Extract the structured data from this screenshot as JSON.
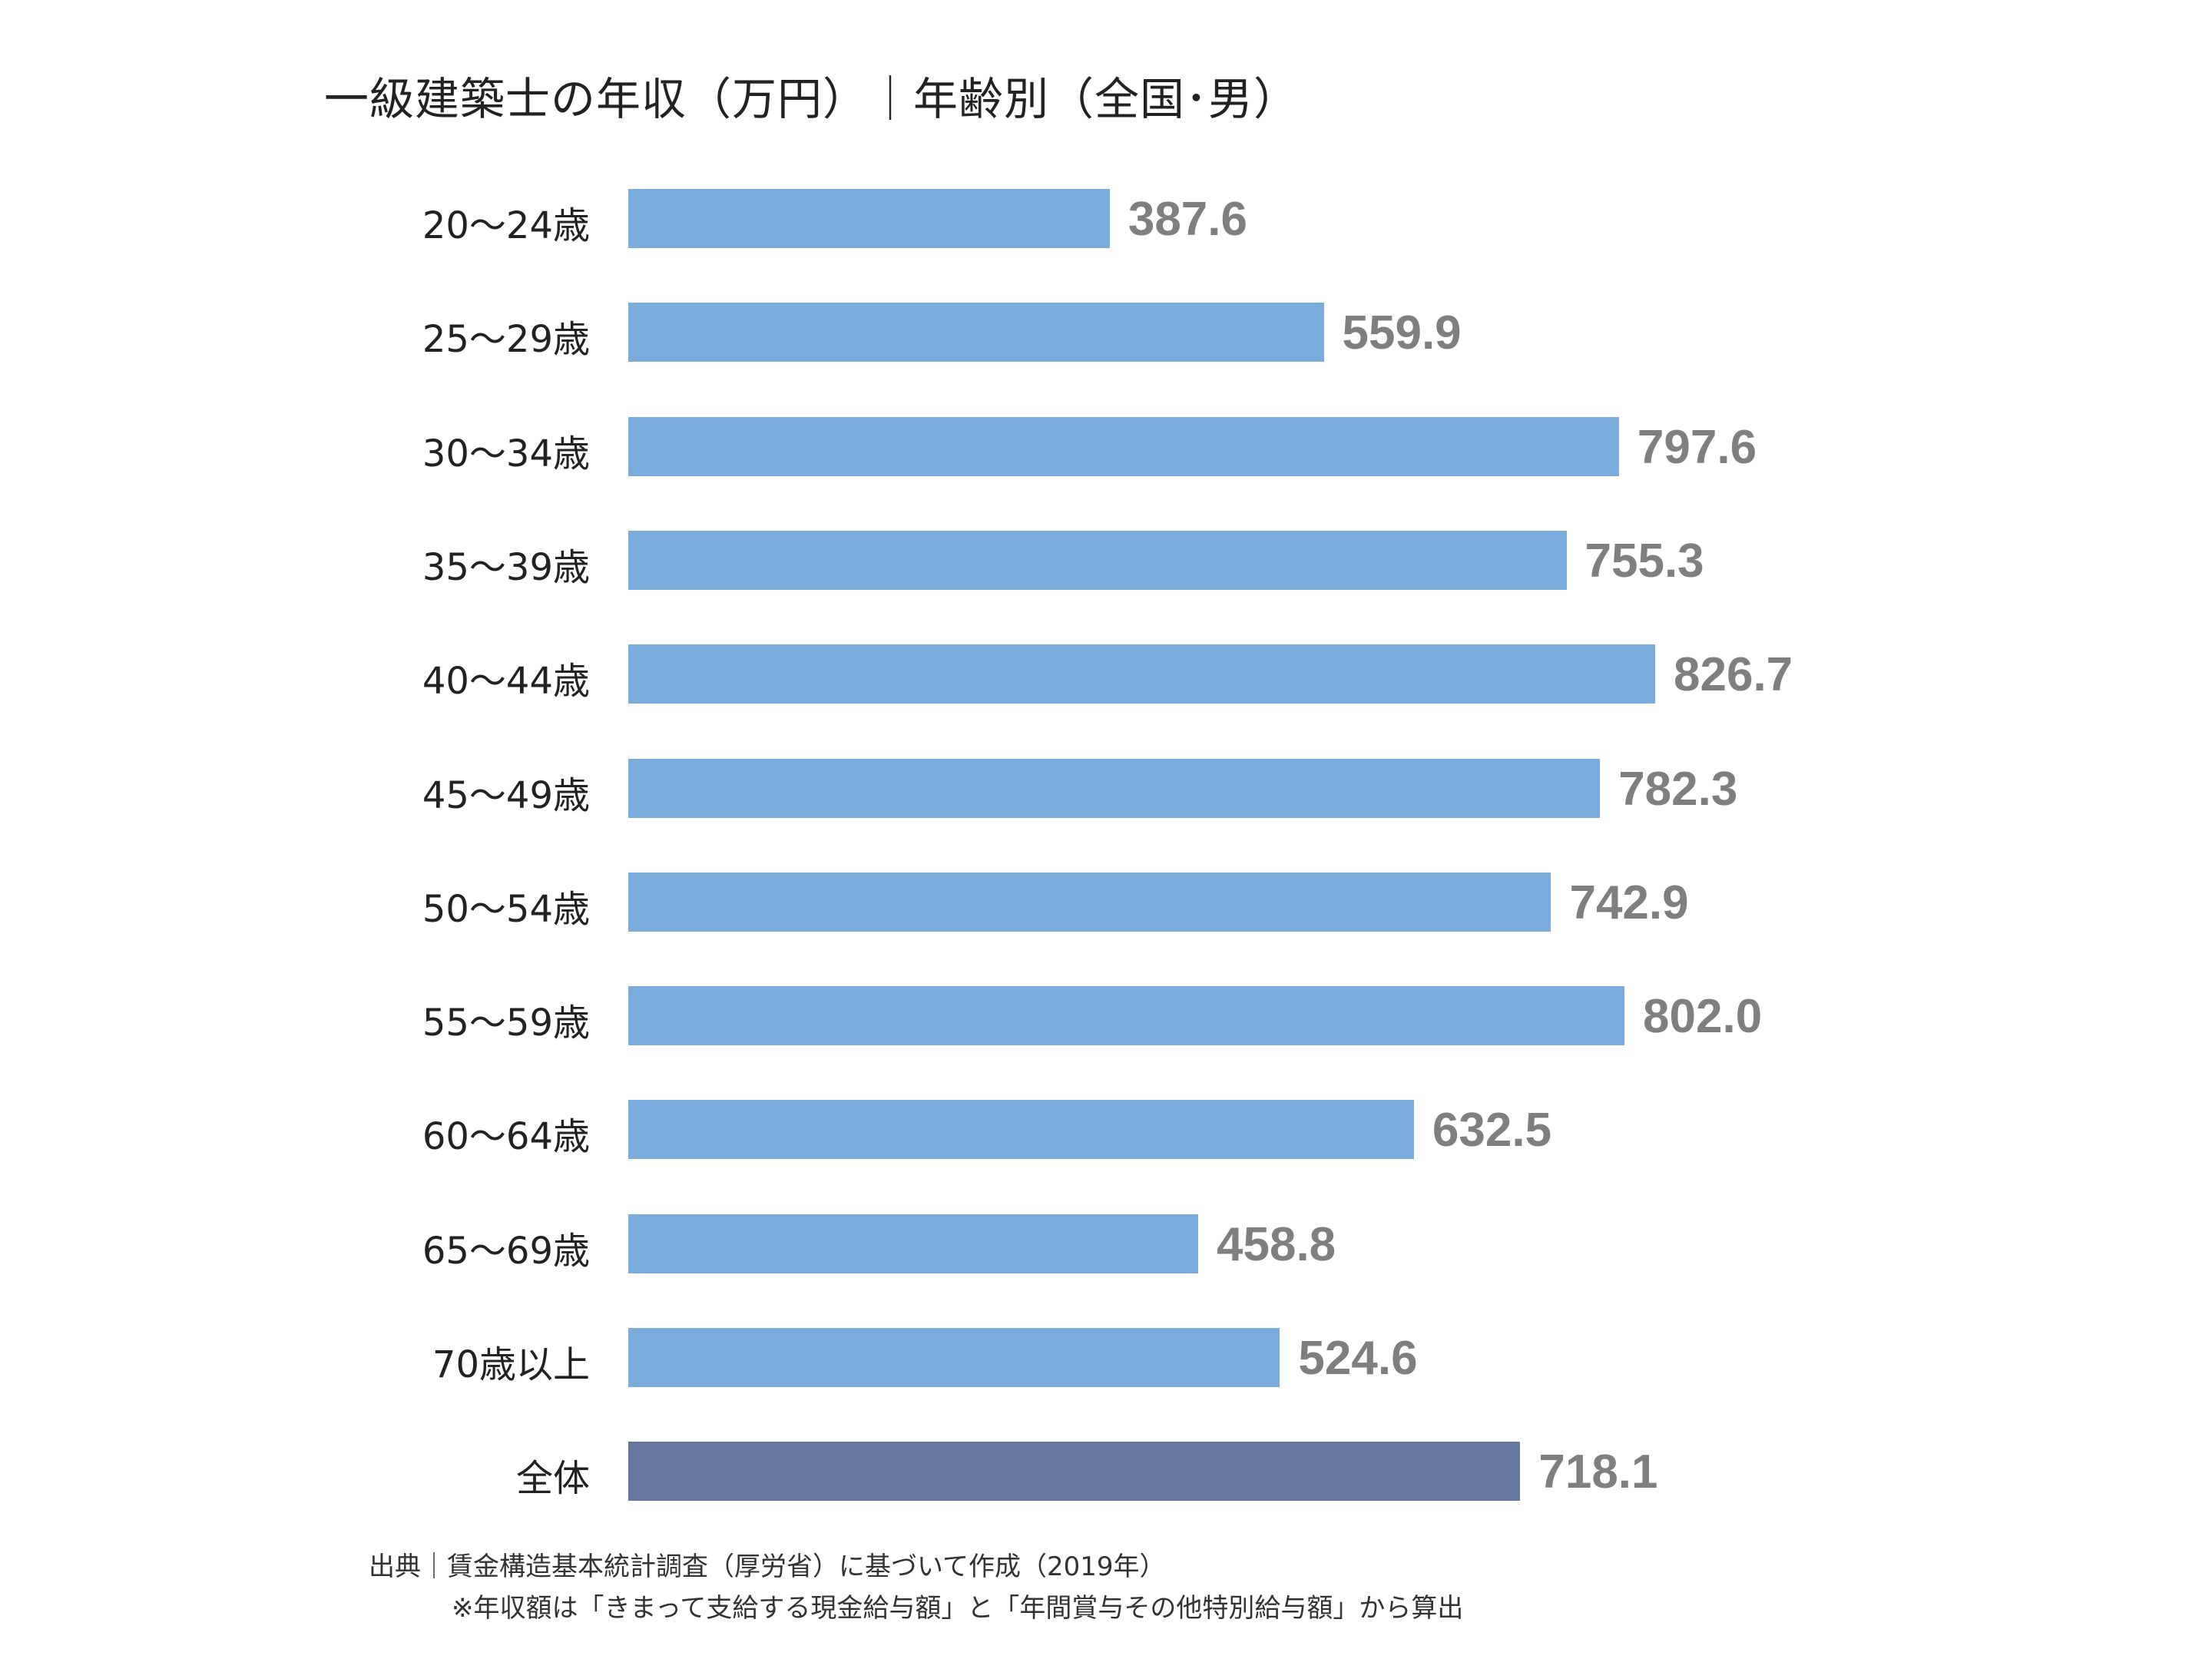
{
  "chart_data": {
    "type": "bar",
    "orientation": "horizontal",
    "title": "一級建築士の年収（万円）｜年齢別（全国･男）",
    "categories": [
      "20～24歳",
      "25～29歳",
      "30～34歳",
      "35～39歳",
      "40～44歳",
      "45～49歳",
      "50～54歳",
      "55～59歳",
      "60～64歳",
      "65～69歳",
      "70歳以上",
      "全体"
    ],
    "values": [
      387.6,
      559.9,
      797.6,
      755.3,
      826.7,
      782.3,
      742.9,
      802.0,
      632.5,
      458.8,
      524.6,
      718.1
    ],
    "value_labels": [
      "387.6",
      "559.9",
      "797.6",
      "755.3",
      "826.7",
      "782.3",
      "742.9",
      "802.0",
      "632.5",
      "458.8",
      "524.6",
      "718.1"
    ],
    "xlim": [
      0,
      830
    ],
    "grid": false,
    "axis_visible": false,
    "colors": {
      "bar": "#7aaddc",
      "total_bar": "#65779f",
      "value_label": "#7f7f7f"
    }
  },
  "footer": {
    "source": "出典｜賃金構造基本統計調査（厚労省）に基づいて作成（2019年）",
    "note": "※年収額は「きまって支給する現金給与額」と「年間賞与その他特別給与額」から算出"
  }
}
